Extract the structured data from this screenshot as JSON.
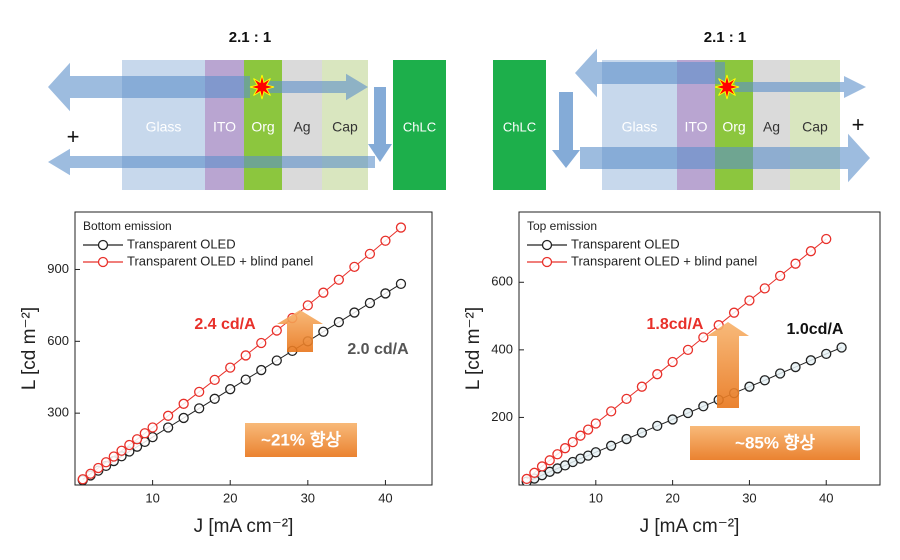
{
  "diagrams": [
    {
      "title": "2.1 : 1",
      "layers": [
        "Glass",
        "ITO",
        "Org",
        "Ag",
        "Cap"
      ],
      "panel": "ChLC",
      "sign": "+"
    },
    {
      "title": "2.1 : 1",
      "layers": [
        "Glass",
        "ITO",
        "Org",
        "Ag",
        "Cap"
      ],
      "panel": "ChLC",
      "sign": "+"
    }
  ],
  "chart_data": [
    {
      "type": "line",
      "legend_title": "Bottom emission",
      "x_label": "J [mA cm⁻²]",
      "y_label": "L [cd m⁻²]",
      "x": [
        1,
        2,
        3,
        4,
        5,
        6,
        7,
        8,
        9,
        10,
        12,
        14,
        16,
        18,
        20,
        22,
        24,
        26,
        28,
        30,
        32,
        34,
        36,
        38,
        40,
        42
      ],
      "series": [
        {
          "name": "Transparent OLED",
          "color": "#222222",
          "values": [
            20,
            40,
            60,
            80,
            100,
            120,
            140,
            160,
            180,
            200,
            240,
            280,
            320,
            360,
            400,
            440,
            480,
            520,
            560,
            600,
            640,
            680,
            720,
            760,
            800,
            840
          ]
        },
        {
          "name": "Transparent OLED + blind panel",
          "color": "#e8302a",
          "values": [
            24,
            47,
            71,
            95,
            119,
            143,
            167,
            191,
            216,
            240,
            289,
            339,
            389,
            439,
            490,
            541,
            593,
            645,
            697,
            750,
            803,
            857,
            911,
            965,
            1020,
            1075
          ]
        }
      ],
      "xlim": [
        0,
        46
      ],
      "ylim": [
        0,
        1140
      ],
      "xticks": [
        10,
        20,
        30,
        40
      ],
      "yticks": [
        300,
        600,
        900
      ],
      "annotations": [
        {
          "text": "2.4 cd/A",
          "color": "#e8302a"
        },
        {
          "text": "2.0 cd/A",
          "color": "#555555"
        },
        {
          "text": "~21% 향상",
          "color": "#ffffff"
        }
      ]
    },
    {
      "type": "line",
      "legend_title": "Top emission",
      "x_label": "J [mA cm⁻²]",
      "y_label": "L [cd m⁻²]",
      "x": [
        1,
        2,
        3,
        4,
        5,
        6,
        7,
        8,
        9,
        10,
        12,
        14,
        16,
        18,
        20,
        22,
        24,
        26,
        28,
        30,
        32,
        34,
        36,
        38,
        40,
        42
      ],
      "series": [
        {
          "name": "Transparent OLED",
          "color": "#222222",
          "values": [
            10,
            19,
            29,
            39,
            49,
            58,
            68,
            78,
            87,
            97,
            116,
            136,
            155,
            175,
            194,
            213,
            233,
            252,
            272,
            291,
            310,
            330,
            349,
            369,
            388,
            407
          ]
        },
        {
          "name": "Transparent OLED + blind panel",
          "color": "#e8302a",
          "values": [
            18,
            36,
            55,
            73,
            91,
            109,
            127,
            146,
            164,
            182,
            218,
            255,
            291,
            328,
            364,
            400,
            437,
            473,
            510,
            546,
            582,
            619,
            655,
            692,
            728,
            null
          ]
        }
      ],
      "xlim": [
        0,
        47
      ],
      "ylim": [
        0,
        808
      ],
      "xticks": [
        10,
        20,
        30,
        40
      ],
      "yticks": [
        200,
        400,
        600
      ],
      "annotations": [
        {
          "text": "1.8cd/A",
          "color": "#e8302a"
        },
        {
          "text": "1.0cd/A",
          "color": "#111111"
        },
        {
          "text": "~85% 향상",
          "color": "#ffffff"
        }
      ]
    }
  ]
}
